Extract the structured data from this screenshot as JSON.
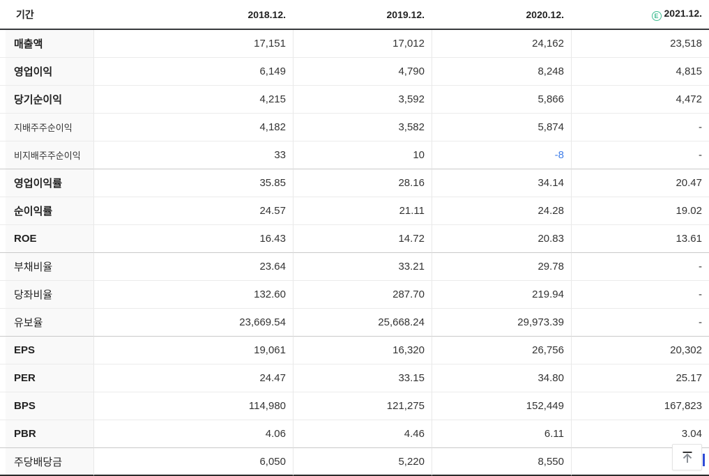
{
  "header": {
    "period_label": "기간",
    "columns": [
      "2018.12.",
      "2019.12.",
      "2020.12.",
      "2021.12."
    ],
    "estimate_icon_letter": "E",
    "estimate_icon_color": "#3fbd92"
  },
  "rows": [
    {
      "label": "매출액",
      "style": "bold",
      "values": [
        "17,151",
        "17,012",
        "24,162",
        "23,518"
      ]
    },
    {
      "label": "영업이익",
      "style": "bold",
      "values": [
        "6,149",
        "4,790",
        "8,248",
        "4,815"
      ]
    },
    {
      "label": "당기순이익",
      "style": "bold",
      "values": [
        "4,215",
        "3,592",
        "5,866",
        "4,472"
      ]
    },
    {
      "label": "지배주주순이익",
      "style": "sub",
      "values": [
        "4,182",
        "3,582",
        "5,874",
        "-"
      ]
    },
    {
      "label": "비지배주주순이익",
      "style": "sub",
      "values": [
        "33",
        "10",
        "-8",
        "-"
      ],
      "negative_cols": [
        2
      ]
    },
    {
      "label": "영업이익률",
      "style": "bold",
      "separator_above": true,
      "values": [
        "35.85",
        "28.16",
        "34.14",
        "20.47"
      ]
    },
    {
      "label": "순이익률",
      "style": "bold",
      "values": [
        "24.57",
        "21.11",
        "24.28",
        "19.02"
      ]
    },
    {
      "label": "ROE",
      "style": "bold",
      "values": [
        "16.43",
        "14.72",
        "20.83",
        "13.61"
      ]
    },
    {
      "label": "부채비율",
      "style": "normal",
      "separator_above": true,
      "values": [
        "23.64",
        "33.21",
        "29.78",
        "-"
      ]
    },
    {
      "label": "당좌비율",
      "style": "normal",
      "values": [
        "132.60",
        "287.70",
        "219.94",
        "-"
      ]
    },
    {
      "label": "유보율",
      "style": "normal",
      "values": [
        "23,669.54",
        "25,668.24",
        "29,973.39",
        "-"
      ]
    },
    {
      "label": "EPS",
      "style": "bold",
      "separator_above": true,
      "values": [
        "19,061",
        "16,320",
        "26,756",
        "20,302"
      ]
    },
    {
      "label": "PER",
      "style": "bold",
      "values": [
        "24.47",
        "33.15",
        "34.80",
        "25.17"
      ]
    },
    {
      "label": "BPS",
      "style": "bold",
      "values": [
        "114,980",
        "121,275",
        "152,449",
        "167,823"
      ]
    },
    {
      "label": "PBR",
      "style": "bold",
      "values": [
        "4.06",
        "4.46",
        "6.11",
        "3.04"
      ]
    },
    {
      "label": "주당배당금",
      "style": "normal",
      "separator_above": true,
      "values": [
        "6,050",
        "5,220",
        "8,550",
        ""
      ]
    }
  ],
  "colors": {
    "header_border": "#37393c",
    "row_line": "#ebebeb",
    "group_separator": "#c9c9c9",
    "column_line": "#e8e8e8",
    "label_background": "#f9f9f9",
    "negative_value": "#3f7de8",
    "estimate_green": "#3fbd92"
  },
  "scroll_top_button": {
    "icon": "scroll-to-top-arrow"
  }
}
